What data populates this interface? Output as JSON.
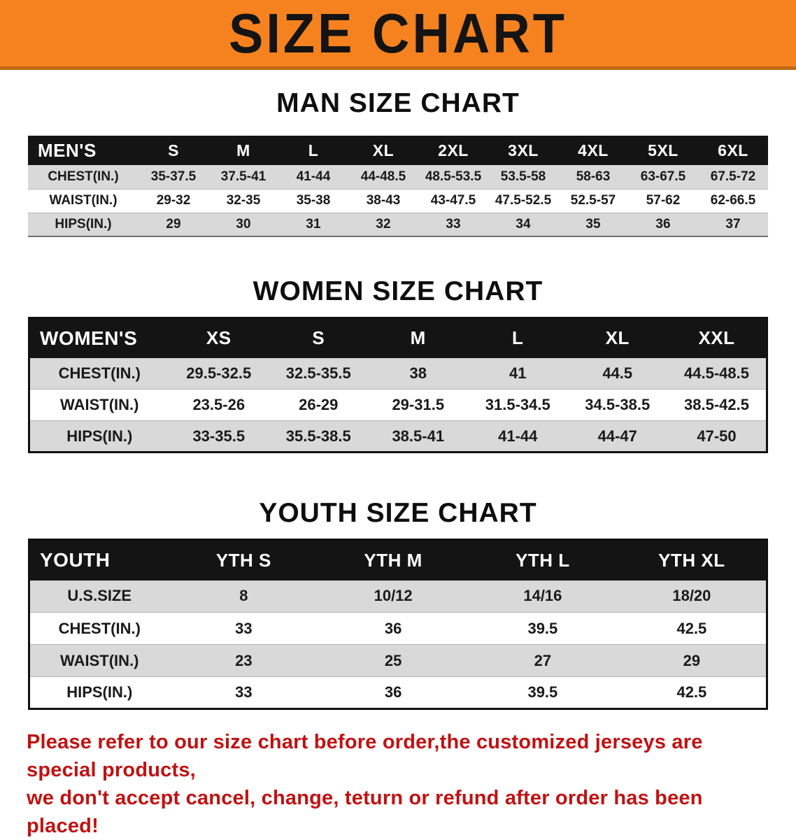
{
  "banner": {
    "title": "SIZE CHART",
    "bg_color": "#f5821f",
    "text_color": "#141414"
  },
  "chart_data": [
    {
      "type": "table",
      "title": "MAN SIZE CHART",
      "corner_label": "MEN'S",
      "columns": [
        "S",
        "M",
        "L",
        "XL",
        "2XL",
        "3XL",
        "4XL",
        "5XL",
        "6XL"
      ],
      "rows": [
        {
          "label": "CHEST(IN.)",
          "values": [
            "35-37.5",
            "37.5-41",
            "41-44",
            "44-48.5",
            "48.5-53.5",
            "53.5-58",
            "58-63",
            "63-67.5",
            "67.5-72"
          ]
        },
        {
          "label": "WAIST(IN.)",
          "values": [
            "29-32",
            "32-35",
            "35-38",
            "38-43",
            "43-47.5",
            "47.5-52.5",
            "52.5-57",
            "57-62",
            "62-66.5"
          ]
        },
        {
          "label": "HIPS(IN.)",
          "values": [
            "29",
            "30",
            "31",
            "32",
            "33",
            "34",
            "35",
            "36",
            "37"
          ]
        }
      ]
    },
    {
      "type": "table",
      "title": "WOMEN SIZE CHART",
      "corner_label": "WOMEN'S",
      "columns": [
        "XS",
        "S",
        "M",
        "L",
        "XL",
        "XXL"
      ],
      "rows": [
        {
          "label": "CHEST(IN.)",
          "values": [
            "29.5-32.5",
            "32.5-35.5",
            "38",
            "41",
            "44.5",
            "44.5-48.5"
          ]
        },
        {
          "label": "WAIST(IN.)",
          "values": [
            "23.5-26",
            "26-29",
            "29-31.5",
            "31.5-34.5",
            "34.5-38.5",
            "38.5-42.5"
          ]
        },
        {
          "label": "HIPS(IN.)",
          "values": [
            "33-35.5",
            "35.5-38.5",
            "38.5-41",
            "41-44",
            "44-47",
            "47-50"
          ]
        }
      ]
    },
    {
      "type": "table",
      "title": "YOUTH SIZE CHART",
      "corner_label": "YOUTH",
      "columns": [
        "YTH S",
        "YTH M",
        "YTH L",
        "YTH XL"
      ],
      "rows": [
        {
          "label": "U.S.SIZE",
          "values": [
            "8",
            "10/12",
            "14/16",
            "18/20"
          ]
        },
        {
          "label": "CHEST(IN.)",
          "values": [
            "33",
            "36",
            "39.5",
            "42.5"
          ]
        },
        {
          "label": "WAIST(IN.)",
          "values": [
            "23",
            "25",
            "27",
            "29"
          ]
        },
        {
          "label": "HIPS(IN.)",
          "values": [
            "33",
            "36",
            "39.5",
            "42.5"
          ]
        }
      ]
    }
  ],
  "footer": {
    "text_color": "#c01212",
    "lines": [
      "Please refer to our size chart before order,the customized jerseys are special products,",
      "we don't accept cancel, change, teturn or refund after order has been placed!"
    ]
  }
}
